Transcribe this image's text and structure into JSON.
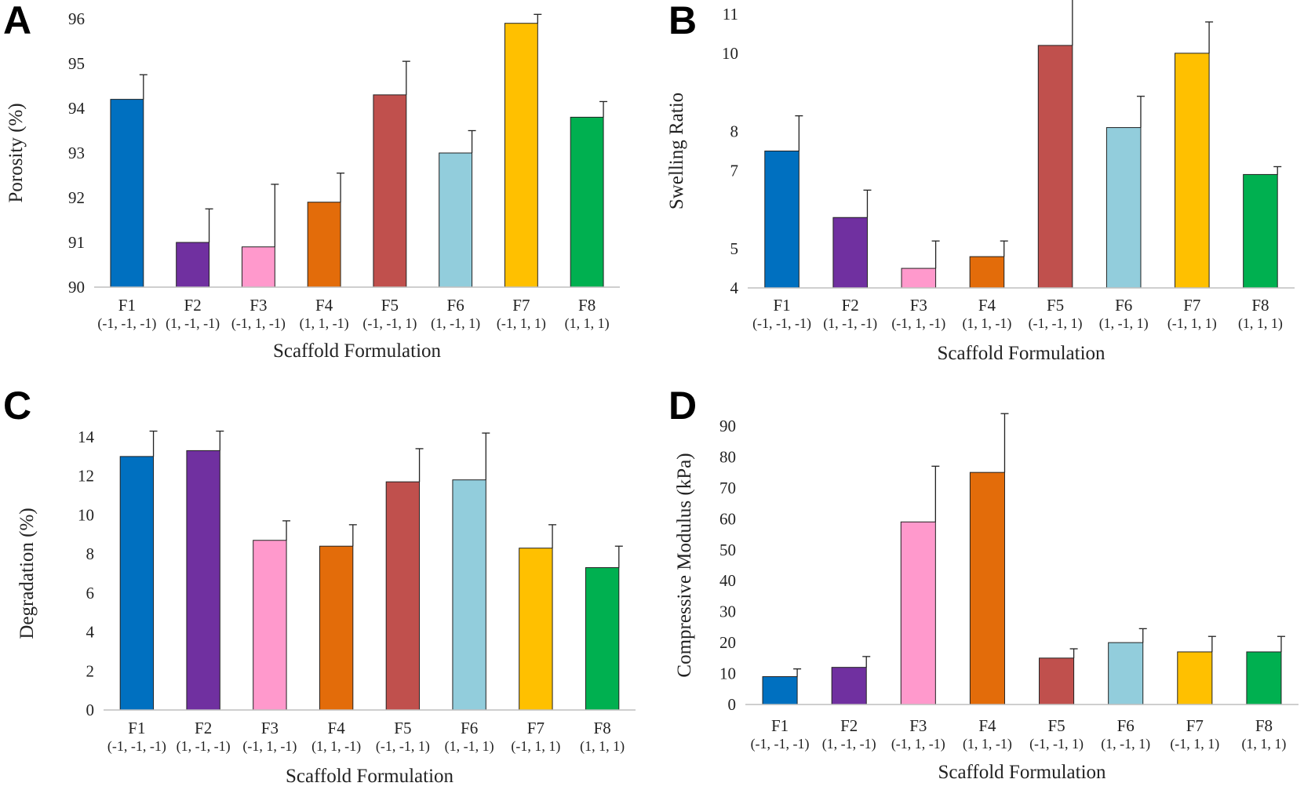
{
  "categories": [
    "F1",
    "F2",
    "F3",
    "F4",
    "F5",
    "F6",
    "F7",
    "F8"
  ],
  "category_codes": [
    "(-1, -1, -1)",
    "(1, -1, -1)",
    "(-1, 1, -1)",
    "(1, 1, -1)",
    "(-1, -1, 1)",
    "(1, -1, 1)",
    "(-1, 1, 1)",
    "(1, 1, 1)"
  ],
  "colors": [
    "#0070C0",
    "#7030A0",
    "#FF99CC",
    "#E36C0A",
    "#C0504D",
    "#92CDDC",
    "#FFC000",
    "#00B050"
  ],
  "chart_data": [
    {
      "panel": "A",
      "type": "bar",
      "ylabel": "Porosity (%)",
      "xlabel": "Scaffold Formulation",
      "ylim": [
        90,
        96
      ],
      "yticks": [
        "90",
        "91",
        "92",
        "93",
        "94",
        "95",
        "96"
      ],
      "values": [
        94.2,
        91.0,
        90.9,
        91.9,
        94.3,
        93.0,
        95.9,
        93.8
      ],
      "errors": [
        0.55,
        0.75,
        1.4,
        0.65,
        0.75,
        0.5,
        0.2,
        0.35
      ]
    },
    {
      "panel": "B",
      "type": "bar",
      "ylabel": "Swelling Ratio",
      "xlabel": "Scaffold Formulation",
      "ylim": [
        4,
        11
      ],
      "yticks": [
        "4",
        "5",
        "7",
        "8",
        "10",
        "11"
      ],
      "values": [
        7.5,
        5.8,
        4.5,
        4.8,
        10.2,
        8.1,
        10.0,
        6.9
      ],
      "errors": [
        0.9,
        0.7,
        0.7,
        0.4,
        1.4,
        0.8,
        0.8,
        0.2
      ]
    },
    {
      "panel": "C",
      "type": "bar",
      "ylabel": "Degradation (%)",
      "xlabel": "Scaffold Formulation",
      "ylim": [
        0,
        14
      ],
      "yticks": [
        "0",
        "2",
        "4",
        "6",
        "8",
        "10",
        "12",
        "14"
      ],
      "values": [
        13.0,
        13.3,
        8.7,
        8.4,
        11.7,
        11.8,
        8.3,
        7.3
      ],
      "errors": [
        1.3,
        1.0,
        1.0,
        1.1,
        1.7,
        2.4,
        1.2,
        1.1
      ]
    },
    {
      "panel": "D",
      "type": "bar",
      "ylabel": "Compressive Modulus (kPa)",
      "xlabel": "Scaffold Formulation",
      "ylim": [
        0,
        90
      ],
      "yticks": [
        "0",
        "10",
        "20",
        "30",
        "40",
        "50",
        "60",
        "70",
        "80",
        "90"
      ],
      "values": [
        9,
        12,
        59,
        75,
        15,
        20,
        17,
        17
      ],
      "errors": [
        2.5,
        3.5,
        18,
        19,
        3,
        4.5,
        5,
        5
      ]
    }
  ]
}
